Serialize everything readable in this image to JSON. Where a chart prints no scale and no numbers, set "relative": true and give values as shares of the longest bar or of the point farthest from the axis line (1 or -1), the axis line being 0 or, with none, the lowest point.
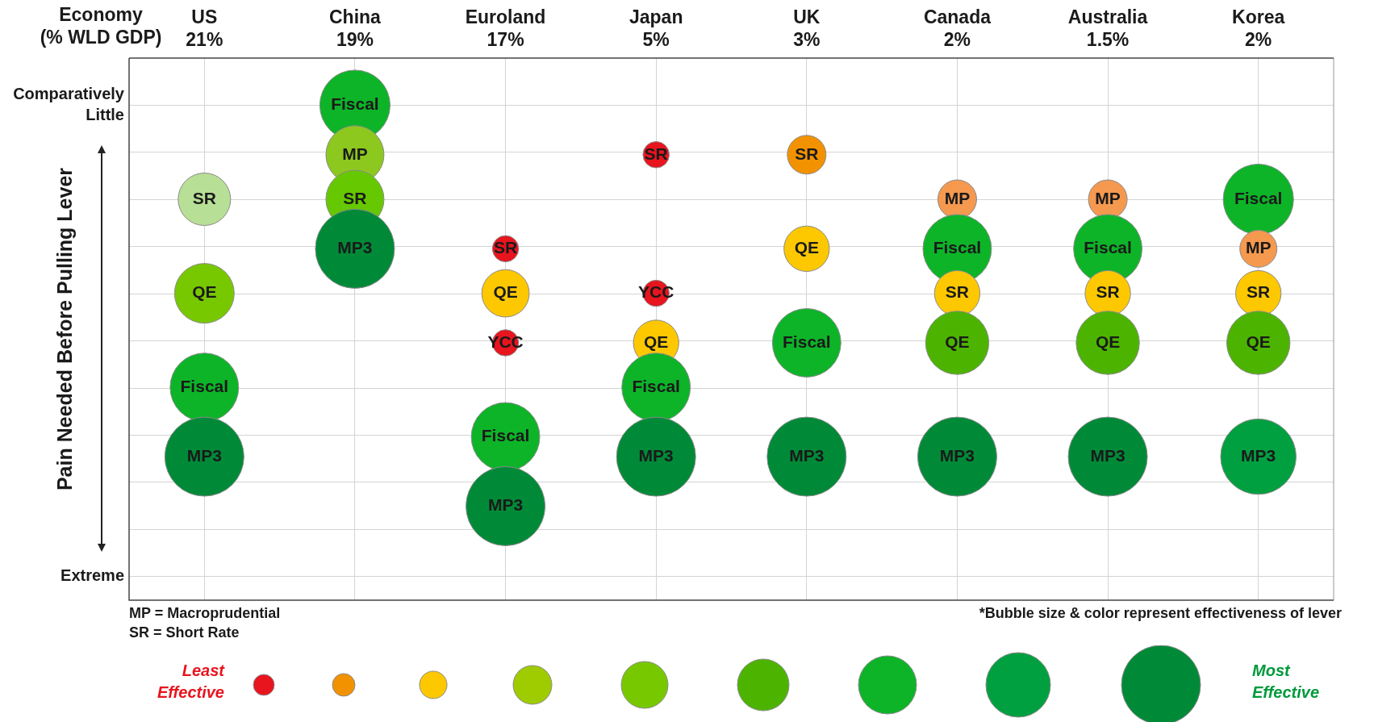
{
  "chart_data": {
    "type": "bubble",
    "xlabel": "Economy\n(% WLD GDP)",
    "categories": [
      "US\n21%",
      "China\n19%",
      "Euroland\n17%",
      "Japan\n5%",
      "UK\n3%",
      "Canada\n2%",
      "Australia\n1.5%",
      "Korea\n2%"
    ],
    "relative": true,
    "grid": true,
    "legend": false,
    "series": [
      {
        "x": [
          "US\n21%",
          "US\n21%",
          "US\n21%",
          "US\n21%",
          "China\n19%",
          "China\n19%",
          "China\n19%",
          "China\n19%",
          "Euroland\n17%",
          "Euroland\n17%",
          "Euroland\n17%",
          "Euroland\n17%",
          "Euroland\n17%",
          "Japan\n5%",
          "Japan\n5%",
          "Japan\n5%",
          "Japan\n5%",
          "Japan\n5%",
          "UK\n3%",
          "UK\n3%",
          "UK\n3%",
          "UK\n3%",
          "Canada\n2%",
          "Canada\n2%",
          "Canada\n2%",
          "Canada\n2%",
          "Canada\n2%",
          "Australia\n1.5%",
          "Australia\n1.5%",
          "Australia\n1.5%",
          "Australia\n1.5%",
          "Australia\n1.5%",
          "Korea\n2%",
          "Korea\n2%",
          "Korea\n2%",
          "Korea\n2%",
          "Korea\n2%"
        ],
        "values": [
          0.81,
          0.62,
          0.43,
          0.29,
          1,
          0.9,
          0.81,
          0.71,
          0.71,
          0.62,
          0.52,
          0.33,
          0.19,
          0.9,
          0.62,
          0.52,
          0.43,
          0.29,
          0.9,
          0.71,
          0.52,
          0.29,
          0.81,
          0.71,
          0.62,
          0.52,
          0.29,
          0.81,
          0.71,
          0.62,
          0.52,
          0.29,
          0.81,
          0.71,
          0.62,
          0.52,
          0.29
        ],
        "sizes": [
          0.44,
          0.57,
          0.75,
          1,
          0.79,
          0.54,
          0.54,
          1,
          0.11,
          0.36,
          0.11,
          0.75,
          1,
          0.11,
          0.11,
          0.33,
          0.75,
          1,
          0.24,
          0.33,
          0.75,
          1,
          0.24,
          0.75,
          0.33,
          0.64,
          1,
          0.24,
          0.75,
          0.33,
          0.64,
          1,
          0.79,
          0.22,
          0.33,
          0.64,
          0.91
        ],
        "colors": [
          "#b8df96",
          "#78c800",
          "#0db428",
          "#008a38",
          "#0db428",
          "#8cc81e",
          "#66c800",
          "#008a38",
          "#e8141e",
          "#fdc800",
          "#e8141e",
          "#0db428",
          "#008a38",
          "#e8141e",
          "#e8141e",
          "#fdc800",
          "#0db428",
          "#008a38",
          "#f39200",
          "#fdc800",
          "#0db428",
          "#008a38",
          "#f5994f",
          "#0db428",
          "#fdc800",
          "#4cb400",
          "#008a38",
          "#f5994f",
          "#0db428",
          "#fdc800",
          "#4cb400",
          "#008a38",
          "#0db428",
          "#f5994f",
          "#fdc800",
          "#4cb400",
          "#00a040"
        ]
      }
    ],
    "annotations": [
      "MP = Macroprudential",
      "SR = Short Rate",
      "*Bubble size & color represent effectiveness of lever",
      "Least\nEffective",
      "Most\nEffective",
      "Comparatively\nLittle",
      "Extreme",
      "Pain Needed Before Pulling Lever",
      {
        "text": "SR",
        "x": "US\n21%",
        "y": 0.81
      },
      {
        "text": "QE",
        "x": "US\n21%",
        "y": 0.62
      },
      {
        "text": "Fiscal",
        "x": "US\n21%",
        "y": 0.43
      },
      {
        "text": "MP3",
        "x": "US\n21%",
        "y": 0.29
      },
      {
        "text": "Fiscal",
        "x": "China\n19%",
        "y": 1
      },
      {
        "text": "MP",
        "x": "China\n19%",
        "y": 0.9
      },
      {
        "text": "SR",
        "x": "China\n19%",
        "y": 0.81
      },
      {
        "text": "MP3",
        "x": "China\n19%",
        "y": 0.71
      },
      {
        "text": "SR",
        "x": "Euroland\n17%",
        "y": 0.71
      },
      {
        "text": "QE",
        "x": "Euroland\n17%",
        "y": 0.62
      },
      {
        "text": "YCC",
        "x": "Euroland\n17%",
        "y": 0.52
      },
      {
        "text": "Fiscal",
        "x": "Euroland\n17%",
        "y": 0.33
      },
      {
        "text": "MP3",
        "x": "Euroland\n17%",
        "y": 0.19
      },
      {
        "text": "SR",
        "x": "Japan\n5%",
        "y": 0.9
      },
      {
        "text": "YCC",
        "x": "Japan\n5%",
        "y": 0.62
      },
      {
        "text": "QE",
        "x": "Japan\n5%",
        "y": 0.52
      },
      {
        "text": "Fiscal",
        "x": "Japan\n5%",
        "y": 0.43
      },
      {
        "text": "MP3",
        "x": "Japan\n5%",
        "y": 0.29
      },
      {
        "text": "SR",
        "x": "UK\n3%",
        "y": 0.9
      },
      {
        "text": "QE",
        "x": "UK\n3%",
        "y": 0.71
      },
      {
        "text": "Fiscal",
        "x": "UK\n3%",
        "y": 0.52
      },
      {
        "text": "MP3",
        "x": "UK\n3%",
        "y": 0.29
      },
      {
        "text": "MP",
        "x": "Canada\n2%",
        "y": 0.81
      },
      {
        "text": "Fiscal",
        "x": "Canada\n2%",
        "y": 0.71
      },
      {
        "text": "SR",
        "x": "Canada\n2%",
        "y": 0.62
      },
      {
        "text": "QE",
        "x": "Canada\n2%",
        "y": 0.52
      },
      {
        "text": "MP3",
        "x": "Canada\n2%",
        "y": 0.29
      },
      {
        "text": "MP",
        "x": "Australia\n1.5%",
        "y": 0.81
      },
      {
        "text": "Fiscal",
        "x": "Australia\n1.5%",
        "y": 0.71
      },
      {
        "text": "SR",
        "x": "Australia\n1.5%",
        "y": 0.62
      },
      {
        "text": "QE",
        "x": "Australia\n1.5%",
        "y": 0.52
      },
      {
        "text": "MP3",
        "x": "Australia\n1.5%",
        "y": 0.29
      },
      {
        "text": "Fiscal",
        "x": "Korea\n2%",
        "y": 0.81
      },
      {
        "text": "MP",
        "x": "Korea\n2%",
        "y": 0.71
      },
      {
        "text": "SR",
        "x": "Korea\n2%",
        "y": 0.62
      },
      {
        "text": "QE",
        "x": "Korea\n2%",
        "y": 0.52
      },
      {
        "text": "MP3",
        "x": "Korea\n2%",
        "y": 0.29
      }
    ]
  }
}
